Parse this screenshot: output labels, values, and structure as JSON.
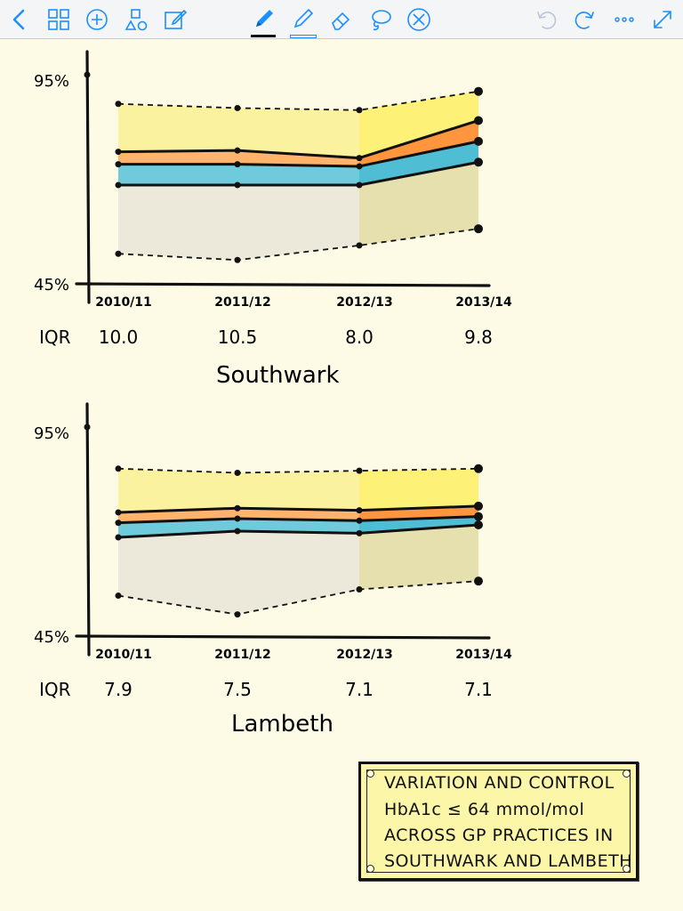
{
  "toolbar": {
    "left_icons": [
      "back-icon",
      "grid-icon",
      "add-icon",
      "shapes-icon",
      "edit-icon"
    ],
    "tool_icons": [
      "pen-icon",
      "highlighter-icon",
      "eraser-icon",
      "lasso-icon",
      "close-circle-icon"
    ],
    "right_icons": [
      "undo-icon",
      "redo-icon",
      "more-icon",
      "expand-icon"
    ],
    "accent_color": "#1a8fff",
    "disabled_color": "#b9c6d6"
  },
  "colors": {
    "yellow_band": "#fbf2a0",
    "orange_band": "#ffb36b",
    "blue_band": "#6fcbdc",
    "grey_band": "#ece9db",
    "ink": "#111111"
  },
  "chart_data": [
    {
      "type": "area",
      "title": "Southwark",
      "x": [
        "2010/11",
        "2011/12",
        "2012/13",
        "2013/14"
      ],
      "y_ticks": [
        "95%",
        "45%"
      ],
      "ylim": [
        45,
        95
      ],
      "series": [
        {
          "values": [
            88,
            87,
            86.5,
            91
          ]
        },
        {
          "values": [
            76.5,
            76.8,
            75,
            84
          ]
        },
        {
          "values": [
            73.5,
            73.5,
            73,
            79
          ]
        },
        {
          "values": [
            68.5,
            68.5,
            68.5,
            74
          ]
        },
        {
          "values": [
            52,
            50.5,
            54,
            58
          ]
        }
      ],
      "iqr_label": "IQR",
      "iqr": [
        "10.0",
        "10.5",
        "8.0",
        "9.8"
      ]
    },
    {
      "type": "area",
      "title": "Lambeth",
      "x": [
        "2010/11",
        "2011/12",
        "2012/13",
        "2013/14"
      ],
      "y_ticks": [
        "95%",
        "45%"
      ],
      "ylim": [
        45,
        95
      ],
      "series": [
        {
          "values": [
            85,
            84,
            84.5,
            85
          ]
        },
        {
          "values": [
            74.5,
            75.5,
            75,
            76
          ]
        },
        {
          "values": [
            72,
            73,
            72.5,
            73.5
          ]
        },
        {
          "values": [
            68.5,
            70,
            69.5,
            71.5
          ]
        },
        {
          "values": [
            54.5,
            50,
            56,
            58
          ]
        }
      ],
      "iqr_label": "IQR",
      "iqr": [
        "7.9",
        "7.5",
        "7.1",
        "7.1"
      ]
    }
  ],
  "note": {
    "lines": [
      "VARIATION AND CONTROL",
      "HbA1c ≤ 64 mmol/mol",
      "ACROSS GP PRACTICES IN",
      "SOUTHWARK AND LAMBETH"
    ]
  }
}
